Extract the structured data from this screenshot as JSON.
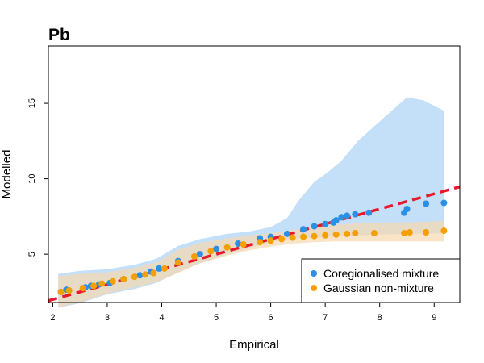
{
  "chart_data": {
    "type": "scatter",
    "title": "Pb",
    "xlabel": "Empirical",
    "ylabel": "Modelled",
    "xlim": [
      1.92,
      9.47
    ],
    "ylim": [
      1.8,
      18.8
    ],
    "xticks": [
      2,
      3,
      4,
      5,
      6,
      7,
      8,
      9
    ],
    "yticks": [
      5,
      10,
      15
    ],
    "legend_position": "bottom-right",
    "colors": {
      "coregionalised": "#2b8fe6",
      "gaussian": "#f5a000",
      "blue_band": "#c4dff8",
      "orange_band": "#f8d9b0",
      "reference_line": "#e8192c"
    },
    "reference_line": {
      "x": [
        1.92,
        9.47
      ],
      "y": [
        1.92,
        9.47
      ]
    },
    "series": [
      {
        "name": "Coregionalised mixture",
        "color": "#2b8fe6",
        "x": [
          2.15,
          2.25,
          2.6,
          2.7,
          2.85,
          3.05,
          3.3,
          3.6,
          3.8,
          3.95,
          4.3,
          4.7,
          5.0,
          5.4,
          5.8,
          6.0,
          6.3,
          6.6,
          6.8,
          7.0,
          7.15,
          7.2,
          7.3,
          7.4,
          7.55,
          7.8,
          8.45,
          8.5,
          8.85,
          9.18
        ],
        "y": [
          2.5,
          2.65,
          2.8,
          2.9,
          3.0,
          3.1,
          3.35,
          3.6,
          3.85,
          4.05,
          4.55,
          5.0,
          5.35,
          5.7,
          6.05,
          6.15,
          6.35,
          6.65,
          6.85,
          7.0,
          7.1,
          7.25,
          7.45,
          7.55,
          7.65,
          7.75,
          7.75,
          8.0,
          8.35,
          8.4
        ],
        "band_x": [
          2.1,
          2.5,
          3.0,
          3.5,
          3.9,
          4.3,
          4.7,
          5.2,
          5.6,
          6.0,
          6.3,
          6.5,
          6.8,
          7.0,
          7.3,
          7.6,
          8.0,
          8.5,
          8.8,
          9.18
        ],
        "band_upper": [
          3.7,
          3.9,
          4.0,
          4.3,
          4.7,
          5.55,
          6.0,
          6.35,
          6.5,
          6.8,
          7.4,
          8.5,
          9.8,
          10.3,
          11.2,
          12.5,
          13.8,
          15.4,
          15.2,
          14.5
        ],
        "band_lower": [
          1.45,
          1.75,
          2.35,
          2.7,
          3.1,
          3.8,
          4.4,
          5.0,
          5.4,
          5.8,
          5.95,
          6.05,
          6.1,
          6.15,
          6.2,
          6.25,
          6.3,
          6.35,
          6.35,
          6.4
        ]
      },
      {
        "name": "Gaussian non-mixture",
        "color": "#f5a000",
        "x": [
          2.15,
          2.3,
          2.55,
          2.75,
          2.9,
          3.1,
          3.3,
          3.5,
          3.7,
          3.85,
          4.05,
          4.3,
          4.6,
          4.9,
          5.2,
          5.5,
          5.8,
          6.0,
          6.2,
          6.4,
          6.6,
          6.8,
          7.0,
          7.2,
          7.4,
          7.55,
          7.9,
          8.45,
          8.55,
          8.85,
          9.18
        ],
        "y": [
          2.5,
          2.6,
          2.75,
          2.9,
          3.05,
          3.2,
          3.35,
          3.5,
          3.65,
          3.75,
          4.05,
          4.45,
          4.85,
          5.2,
          5.45,
          5.65,
          5.8,
          5.9,
          6.0,
          6.1,
          6.15,
          6.2,
          6.25,
          6.3,
          6.35,
          6.4,
          6.4,
          6.4,
          6.45,
          6.45,
          6.55
        ],
        "band_x": [
          2.1,
          2.5,
          3.0,
          3.5,
          3.9,
          4.3,
          4.7,
          5.2,
          5.6,
          6.0,
          6.4,
          6.8,
          7.2,
          7.6,
          8.0,
          8.5,
          9.18
        ],
        "band_upper": [
          3.55,
          3.7,
          3.8,
          4.1,
          4.45,
          5.3,
          5.75,
          6.05,
          6.25,
          6.4,
          6.6,
          6.8,
          6.95,
          7.05,
          7.1,
          7.1,
          7.2
        ],
        "band_lower": [
          1.5,
          1.8,
          2.4,
          2.8,
          3.15,
          3.75,
          4.4,
          4.9,
          5.25,
          5.5,
          5.7,
          5.8,
          5.85,
          5.85,
          5.85,
          5.85,
          5.85
        ]
      }
    ]
  }
}
